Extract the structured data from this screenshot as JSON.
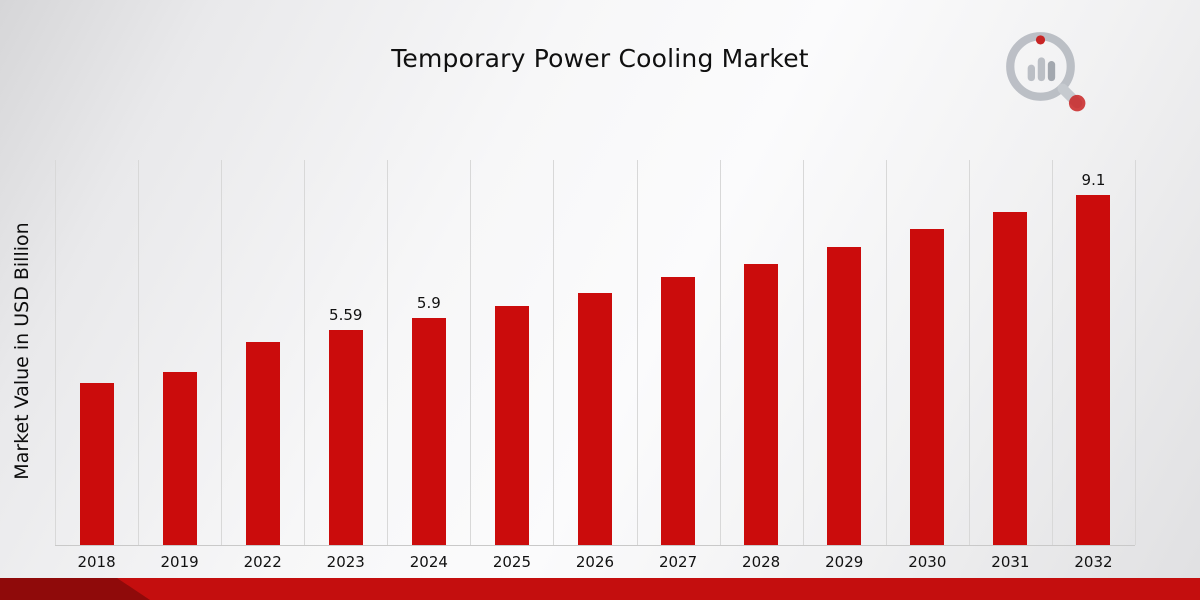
{
  "chart_data": {
    "type": "bar",
    "title": "Temporary Power Cooling Market",
    "xlabel": "",
    "ylabel": "Market Value in USD Billion",
    "categories": [
      "2018",
      "2019",
      "2022",
      "2023",
      "2024",
      "2025",
      "2026",
      "2027",
      "2028",
      "2029",
      "2030",
      "2031",
      "2032"
    ],
    "values": [
      4.2,
      4.5,
      5.28,
      5.59,
      5.9,
      6.2,
      6.55,
      6.95,
      7.3,
      7.75,
      8.2,
      8.65,
      9.1
    ],
    "data_labels": [
      "",
      "",
      "",
      "5.59",
      "5.9",
      "",
      "",
      "",
      "",
      "",
      "",
      "",
      "9.1"
    ],
    "ylim": [
      0,
      10
    ],
    "grid": "vertical-only",
    "legend": "none",
    "bar_color": "#cb0c0c"
  },
  "branding": {
    "logo_icon": "magnifier-bar-chart-icon",
    "footer_band_color": "#c40e0e",
    "footer_accent_color": "#8f0a0a"
  }
}
